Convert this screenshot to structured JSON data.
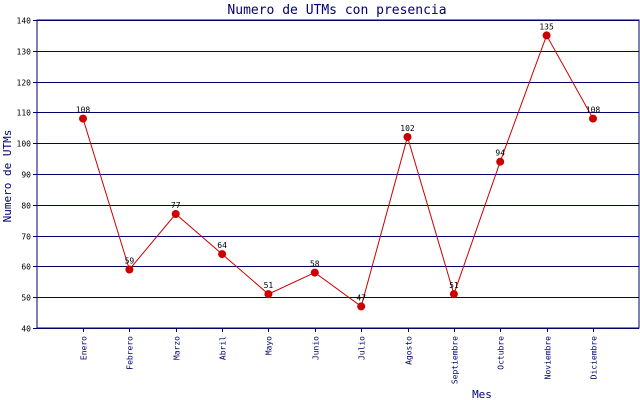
{
  "chart_data": {
    "type": "line",
    "title": "Numero de UTMs con presencia",
    "xlabel": "Mes",
    "ylabel": "Numero de UTMs",
    "ylim": [
      40,
      140
    ],
    "yticks": [
      40,
      50,
      60,
      70,
      80,
      90,
      100,
      110,
      120,
      130,
      140
    ],
    "grid": "horizontal",
    "categories": [
      "Enero",
      "Febrero",
      "Marzo",
      "Abril",
      "Mayo",
      "Junio",
      "Julio",
      "Agosto",
      "Septiembre",
      "Octubre",
      "Noviembre",
      "Diciembre"
    ],
    "series": [
      {
        "values": [
          108,
          59,
          77,
          64,
          51,
          58,
          47,
          102,
          51,
          94,
          135,
          108
        ],
        "color": "#cc0000"
      }
    ],
    "colors": {
      "axis": "#00006e",
      "grid": "#00006e",
      "line": "#cc0000",
      "marker": "#cc0000"
    }
  }
}
